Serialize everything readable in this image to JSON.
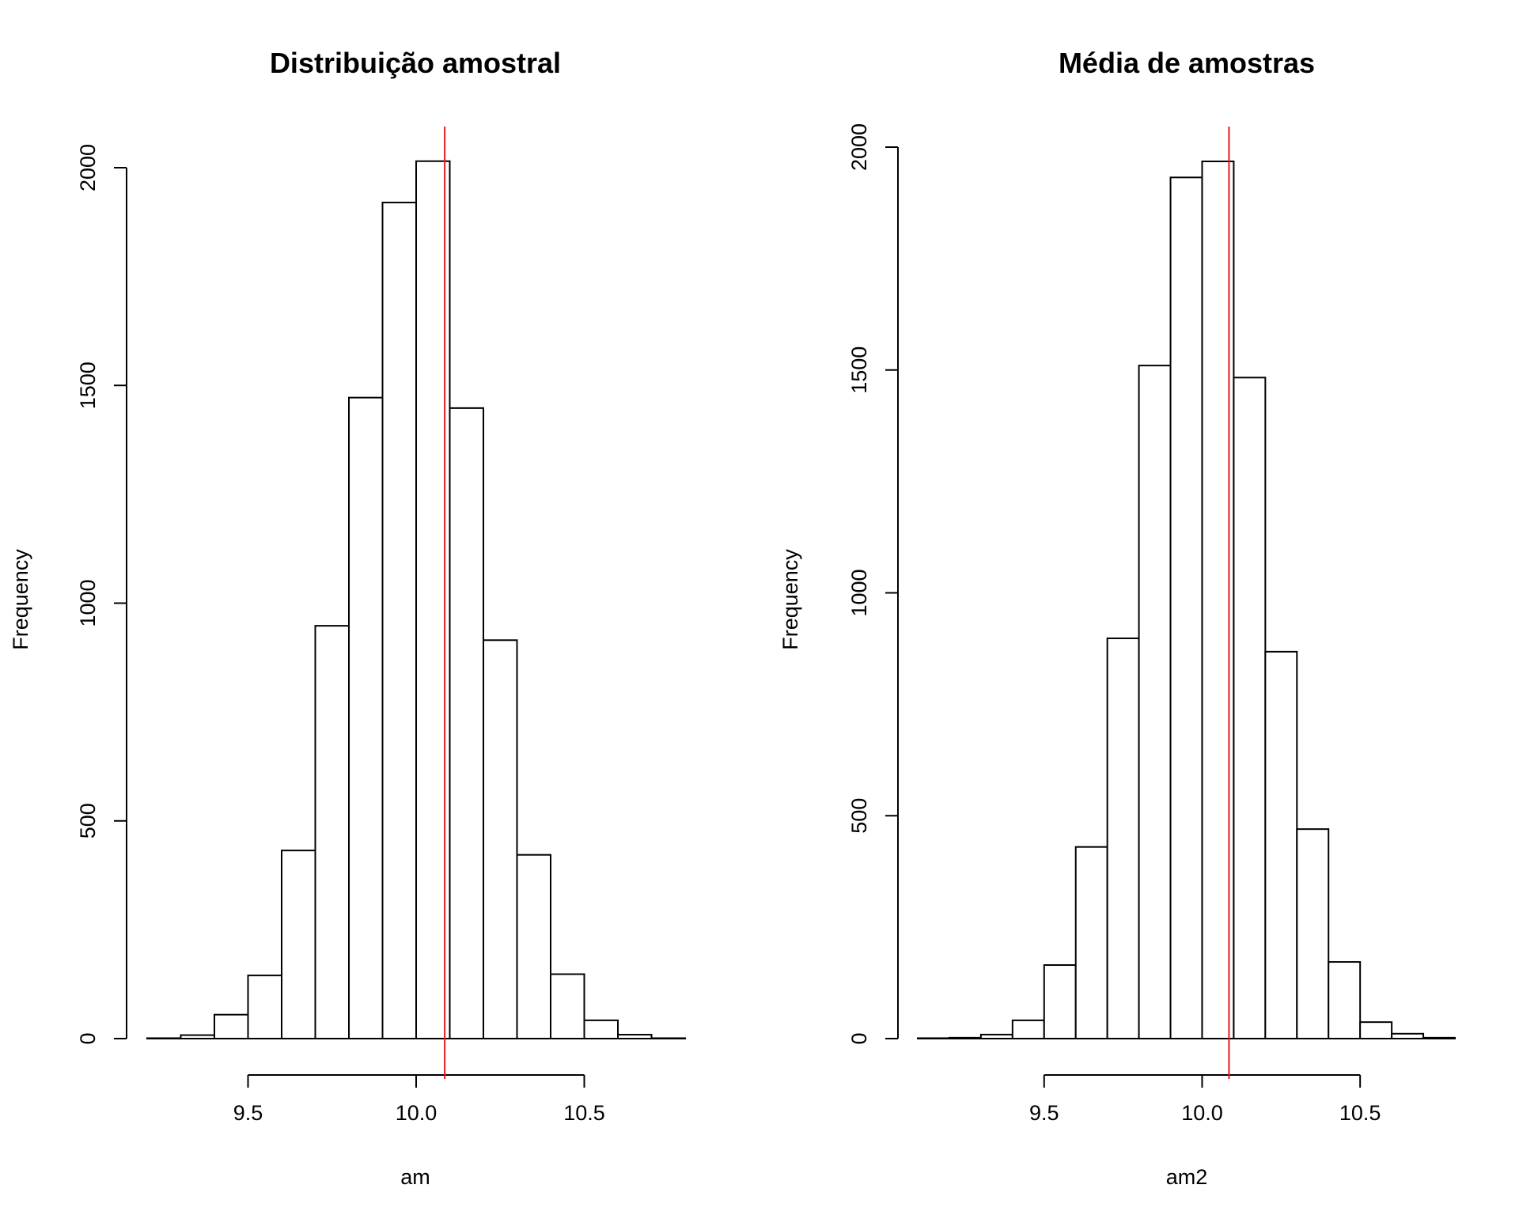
{
  "chart_data": [
    {
      "type": "bar",
      "subtype": "histogram",
      "title": "Distribuição amostral",
      "xlabel": "am",
      "ylabel": "Frequency",
      "bin_edges": [
        9.2,
        9.3,
        9.4,
        9.5,
        9.6,
        9.7,
        9.8,
        9.9,
        10.0,
        10.1,
        10.2,
        10.3,
        10.4,
        10.5,
        10.6,
        10.7,
        10.8
      ],
      "values": [
        1,
        8,
        55,
        145,
        432,
        948,
        1472,
        1920,
        2015,
        1448,
        915,
        422,
        148,
        42,
        9,
        1
      ],
      "xlim": [
        9.2,
        10.8
      ],
      "ylim": [
        0,
        2000
      ],
      "xticks": [
        9.5,
        10.0,
        10.5
      ],
      "xtick_labels": [
        "9.5",
        "10.0",
        "10.5"
      ],
      "yticks": [
        0,
        500,
        1000,
        1500,
        2000
      ],
      "ytick_labels": [
        "0",
        "500",
        "1000",
        "1500",
        "2000"
      ],
      "vline": {
        "x": 10.085,
        "color": "#e41a1c"
      }
    },
    {
      "type": "bar",
      "subtype": "histogram",
      "title": "Média de amostras",
      "xlabel": "am2",
      "ylabel": "Frequency",
      "bin_edges": [
        9.1,
        9.2,
        9.3,
        9.4,
        9.5,
        9.6,
        9.7,
        9.8,
        9.9,
        10.0,
        10.1,
        10.2,
        10.3,
        10.4,
        10.5,
        10.6,
        10.7,
        10.8
      ],
      "values": [
        1,
        2,
        9,
        41,
        165,
        430,
        898,
        1510,
        1932,
        1968,
        1483,
        868,
        470,
        172,
        37,
        11,
        2
      ],
      "xlim": [
        9.1,
        10.8
      ],
      "ylim": [
        0,
        2000
      ],
      "xticks": [
        9.5,
        10.0,
        10.5
      ],
      "xtick_labels": [
        "9.5",
        "10.0",
        "10.5"
      ],
      "yticks": [
        0,
        500,
        1000,
        1500,
        2000
      ],
      "ytick_labels": [
        "0",
        "500",
        "1000",
        "1500",
        "2000"
      ],
      "vline": {
        "x": 10.085,
        "color": "#e41a1c"
      }
    }
  ]
}
